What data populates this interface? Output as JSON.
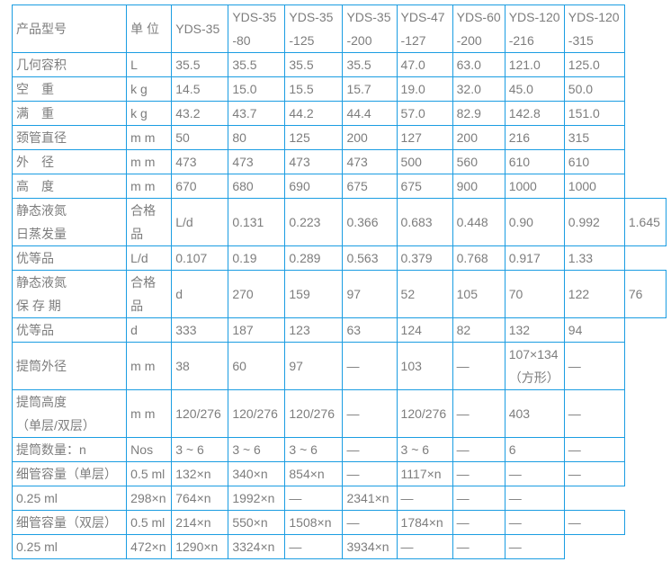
{
  "colors": {
    "border": "#1b9de2",
    "text": "#7d7d7d",
    "background": "#ffffff"
  },
  "table": {
    "header_cells": [
      "产品型号",
      "单 位",
      "YDS-35",
      "YDS-35\n-80",
      "YDS-35\n-125",
      "YDS-35\n-200",
      "YDS-47\n-127",
      "YDS-60\n-200",
      "YDS-120\n-216",
      "YDS-120\n-315"
    ],
    "rows": [
      [
        "几何容积",
        "L",
        "35.5",
        "35.5",
        "35.5",
        "35.5",
        "47.0",
        "63.0",
        "121.0",
        "125.0"
      ],
      [
        "空　重",
        "k g",
        "14.5",
        "15.0",
        "15.5",
        "15.7",
        "19.0",
        "32.0",
        "45.0",
        "50.0"
      ],
      [
        "满　重",
        "k g",
        "43.2",
        "43.7",
        "44.2",
        "44.4",
        "57.0",
        "82.9",
        "142.8",
        "151.0"
      ],
      [
        "颈管直径",
        "m m",
        "50",
        "80",
        "125",
        "200",
        "127",
        "200",
        "216",
        "315"
      ],
      [
        "外　径",
        "m m",
        "473",
        "473",
        "473",
        "473",
        "500",
        "560",
        "610",
        "610"
      ],
      [
        "高　度",
        "m m",
        "670",
        "680",
        "690",
        "675",
        "675",
        "900",
        "1000",
        "1000"
      ],
      [
        "静态液氮\n日蒸发量",
        "合格品",
        "L/d",
        "0.131",
        "0.223",
        "0.366",
        "0.683",
        "0.448",
        "0.90",
        "0.992",
        "1.645"
      ],
      [
        "优等品",
        "L/d",
        "0.107",
        "0.19",
        "0.289",
        "0.563",
        "0.379",
        "0.768",
        "0.917",
        "1.33"
      ],
      [
        "静态液氮\n保 存 期",
        "合格品",
        "d",
        "270",
        "159",
        "97",
        "52",
        "105",
        "70",
        "122",
        "76"
      ],
      [
        "优等品",
        "d",
        "333",
        "187",
        "123",
        "63",
        "124",
        "82",
        "132",
        "94"
      ],
      [
        "提筒外径",
        "m m",
        "38",
        "60",
        "97",
        "—",
        "103",
        "—",
        "107×134\n（方形）",
        "—"
      ],
      [
        "提筒高度\n（单层/双层）",
        "m m",
        "120/276",
        "120/276",
        "120/276",
        "—",
        "120/276",
        "—",
        "403",
        "—"
      ],
      [
        "提筒数量：n",
        "Nos",
        "3 ~ 6",
        "3 ~ 6",
        "3 ~ 6",
        "—",
        "3 ~ 6",
        "—",
        "6",
        "—"
      ],
      [
        "细管容量（单层）",
        "0.5 ml",
        "132×n",
        "340×n",
        "854×n",
        "—",
        "1117×n",
        "—",
        "—",
        "—"
      ],
      [
        "0.25 ml",
        "298×n",
        "764×n",
        "1992×n",
        "—",
        "2341×n",
        "—",
        "—",
        "—"
      ],
      [
        "细管容量（双层）",
        "0.5 ml",
        "214×n",
        "550×n",
        "1508×n",
        "—",
        "1784×n",
        "—",
        "—",
        "—"
      ],
      [
        "0.25 ml",
        "472×n",
        "1290×n",
        "3324×n",
        "—",
        "3934×n",
        "—",
        "—",
        "—"
      ]
    ]
  }
}
